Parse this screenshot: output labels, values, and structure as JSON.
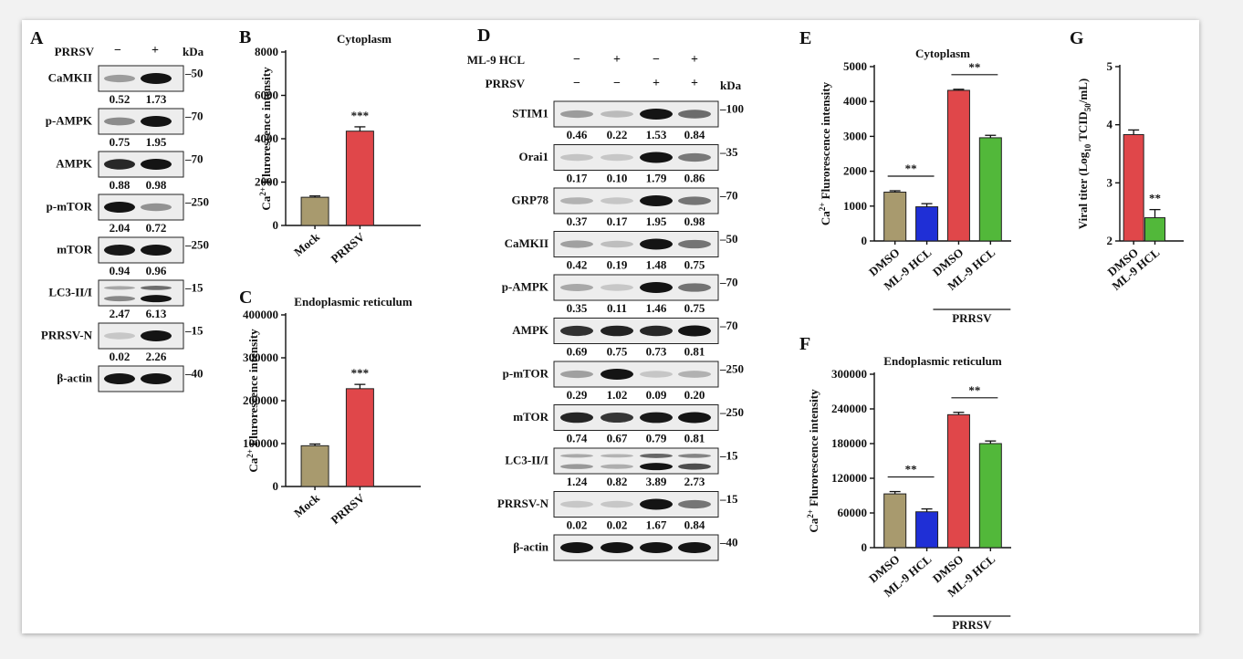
{
  "colors": {
    "khaki": "#a89a6e",
    "red": "#e0474a",
    "blue": "#1f2fd6",
    "green": "#52b83a",
    "axis": "#111111",
    "band": "#1a1a1a",
    "lane_bg": "#ededed"
  },
  "panel_A": {
    "letter": "A",
    "header_label": "PRRSV",
    "lanes": [
      "−",
      "+"
    ],
    "kda_label": "kDa",
    "blots": [
      {
        "name": "CaMKII",
        "values": [
          "0.52",
          "1.73"
        ],
        "marker": "50"
      },
      {
        "name": "p-AMPK",
        "values": [
          "0.75",
          "1.95"
        ],
        "marker": "70"
      },
      {
        "name": "AMPK",
        "values": [
          "0.88",
          "0.98"
        ],
        "marker": "70"
      },
      {
        "name": "p-mTOR",
        "values": [
          "2.04",
          "0.72"
        ],
        "marker": "250"
      },
      {
        "name": "mTOR",
        "values": [
          "0.94",
          "0.96"
        ],
        "marker": "250"
      },
      {
        "name": "LC3-II/I",
        "values": [
          "2.47",
          "6.13"
        ],
        "marker": "15"
      },
      {
        "name": "PRRSV-N",
        "values": [
          "0.02",
          "2.26"
        ],
        "marker": "15"
      },
      {
        "name": "β-actin",
        "values": [],
        "marker": "40"
      }
    ]
  },
  "panel_D": {
    "letter": "D",
    "header_rows": [
      {
        "label": "ML-9 HCL",
        "lanes": [
          "−",
          "+",
          "−",
          "+"
        ]
      },
      {
        "label": "PRRSV",
        "lanes": [
          "−",
          "−",
          "+",
          "+"
        ]
      }
    ],
    "kda_label": "kDa",
    "blots": [
      {
        "name": "STIM1",
        "values": [
          "0.46",
          "0.22",
          "1.53",
          "0.84"
        ],
        "marker": "100"
      },
      {
        "name": "Orai1",
        "values": [
          "0.17",
          "0.10",
          "1.79",
          "0.86"
        ],
        "marker": "35"
      },
      {
        "name": "GRP78",
        "values": [
          "0.37",
          "0.17",
          "1.95",
          "0.98"
        ],
        "marker": "70"
      },
      {
        "name": "CaMKII",
        "values": [
          "0.42",
          "0.19",
          "1.48",
          "0.75"
        ],
        "marker": "50"
      },
      {
        "name": "p-AMPK",
        "values": [
          "0.35",
          "0.11",
          "1.46",
          "0.75"
        ],
        "marker": "70"
      },
      {
        "name": "AMPK",
        "values": [
          "0.69",
          "0.75",
          "0.73",
          "0.81"
        ],
        "marker": "70"
      },
      {
        "name": "p-mTOR",
        "values": [
          "0.29",
          "1.02",
          "0.09",
          "0.20"
        ],
        "marker": "250"
      },
      {
        "name": "mTOR",
        "values": [
          "0.74",
          "0.67",
          "0.79",
          "0.81"
        ],
        "marker": "250"
      },
      {
        "name": "LC3-II/I",
        "values": [
          "1.24",
          "0.82",
          "3.89",
          "2.73"
        ],
        "marker": "15"
      },
      {
        "name": "PRRSV-N",
        "values": [
          "0.02",
          "0.02",
          "1.67",
          "0.84"
        ],
        "marker": "15"
      },
      {
        "name": "β-actin",
        "values": [],
        "marker": "40"
      }
    ]
  },
  "chart_data": [
    {
      "id": "B",
      "type": "bar",
      "title": "Cytoplasm",
      "ylabel": "Ca2+ Flurorescence intensity",
      "categories": [
        "Mock",
        "PRRSV"
      ],
      "values": [
        1300,
        4350
      ],
      "errors": [
        60,
        200
      ],
      "colors": [
        "#a89a6e",
        "#e0474a"
      ],
      "ylim": [
        0,
        8000
      ],
      "yticks": [
        "0",
        "2000",
        "4000",
        "6000",
        "8000"
      ],
      "significance": [
        {
          "bar": 1,
          "label": "***"
        }
      ]
    },
    {
      "id": "C",
      "type": "bar",
      "title": "Endoplasmic reticulum",
      "ylabel": "Ca2+ Flurorescence intensity",
      "categories": [
        "Mock",
        "PRRSV"
      ],
      "values": [
        95000,
        228000
      ],
      "errors": [
        4000,
        10000
      ],
      "colors": [
        "#a89a6e",
        "#e0474a"
      ],
      "ylim": [
        0,
        400000
      ],
      "yticks": [
        "0",
        "100000",
        "200000",
        "300000",
        "400000"
      ],
      "significance": [
        {
          "bar": 1,
          "label": "***"
        }
      ]
    },
    {
      "id": "E",
      "type": "bar",
      "title": "Cytoplasm",
      "ylabel": "Ca2+ Flurorescence intensity",
      "categories": [
        "DMSO",
        "ML-9 HCL",
        "DMSO",
        "ML-9 HCL"
      ],
      "group_label": "PRRSV",
      "values": [
        1400,
        980,
        4320,
        2960
      ],
      "errors": [
        40,
        90,
        30,
        70
      ],
      "colors": [
        "#a89a6e",
        "#1f2fd6",
        "#e0474a",
        "#52b83a"
      ],
      "ylim": [
        0,
        5000
      ],
      "yticks": [
        "0",
        "1000",
        "2000",
        "3000",
        "4000",
        "5000"
      ],
      "significance": [
        {
          "from": 0,
          "to": 1,
          "label": "**"
        },
        {
          "from": 2,
          "to": 3,
          "label": "**"
        }
      ]
    },
    {
      "id": "F",
      "type": "bar",
      "title": "Endoplasmic reticulum",
      "ylabel": "Ca2+ Flurorescence intensity",
      "categories": [
        "DMSO",
        "ML-9 HCL",
        "DMSO",
        "ML-9 HCL"
      ],
      "group_label": "PRRSV",
      "values": [
        93000,
        62000,
        230000,
        180000
      ],
      "errors": [
        4000,
        5000,
        4000,
        4500
      ],
      "colors": [
        "#a89a6e",
        "#1f2fd6",
        "#e0474a",
        "#52b83a"
      ],
      "ylim": [
        0,
        300000
      ],
      "yticks": [
        "0",
        "60000",
        "120000",
        "180000",
        "240000",
        "300000"
      ],
      "significance": [
        {
          "from": 0,
          "to": 1,
          "label": "**"
        },
        {
          "from": 2,
          "to": 3,
          "label": "**"
        }
      ]
    },
    {
      "id": "G",
      "type": "bar",
      "title": "",
      "ylabel": "Viral titer (Log10 TCID50/mL)",
      "categories": [
        "DMSO",
        "ML-9 HCL"
      ],
      "values": [
        3.83,
        2.4
      ],
      "errors": [
        0.08,
        0.14
      ],
      "colors": [
        "#e0474a",
        "#52b83a"
      ],
      "ylim": [
        2,
        5
      ],
      "yticks": [
        "2",
        "3",
        "4",
        "5"
      ],
      "significance": [
        {
          "bar": 1,
          "label": "**"
        }
      ]
    }
  ]
}
